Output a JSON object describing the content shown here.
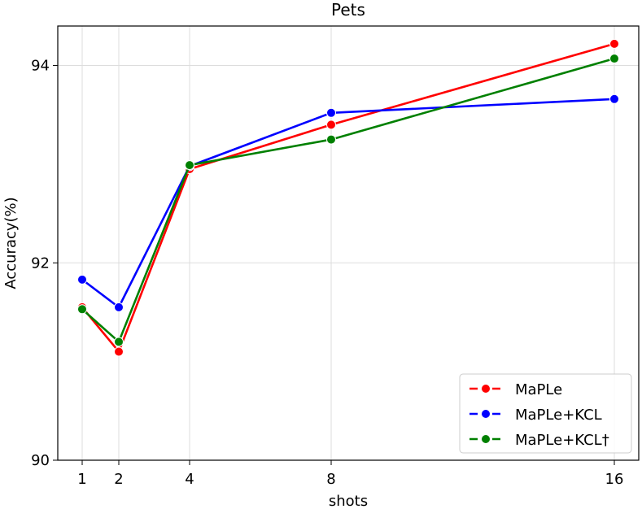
{
  "chart_data": {
    "type": "line",
    "title": "Pets",
    "xlabel": "shots",
    "ylabel": "Accuracy(%)",
    "x": [
      1,
      2,
      4,
      8,
      16
    ],
    "x_ticks": [
      "1",
      "2",
      "4",
      "8",
      "16"
    ],
    "y_ticks": [
      "90",
      "92",
      "94"
    ],
    "ylim": [
      90,
      94.4
    ],
    "grid": true,
    "legend_position": "bottom-right",
    "series": [
      {
        "name": "MaPLe",
        "color": "#ff0000",
        "values": [
          91.55,
          91.1,
          92.95,
          93.4,
          94.22
        ]
      },
      {
        "name": "MaPLe+KCL",
        "color": "#0000ff",
        "values": [
          91.83,
          91.55,
          92.98,
          93.52,
          93.66
        ]
      },
      {
        "name": "MaPLe+KCL†",
        "color": "#008000",
        "values": [
          91.53,
          91.2,
          92.99,
          93.25,
          94.07
        ]
      }
    ]
  }
}
